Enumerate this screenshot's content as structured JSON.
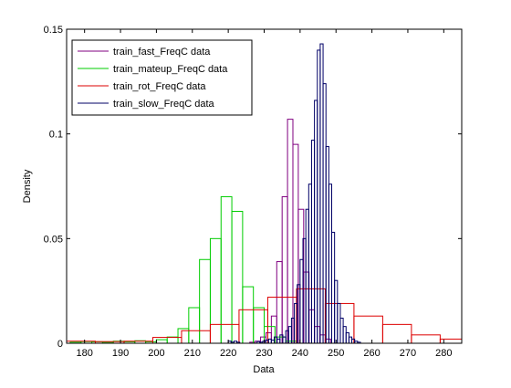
{
  "chart_data": {
    "type": "histogram",
    "xlabel": "Data",
    "ylabel": "Density",
    "xlim": [
      175,
      285
    ],
    "ylim": [
      0,
      0.15
    ],
    "xticks": [
      180,
      190,
      200,
      210,
      220,
      230,
      240,
      250,
      260,
      270,
      280
    ],
    "yticks": [
      0,
      0.05,
      0.1,
      0.15
    ],
    "ytick_labels": [
      "0",
      "0.05",
      "0.1",
      "0.15"
    ],
    "grid": false,
    "legend_position": "top-left",
    "series": [
      {
        "name": "train_fast_FreqC data",
        "color": "#800080",
        "bins": [
          [
            226,
            227.5,
            0.0005
          ],
          [
            227.5,
            229,
            0.001
          ],
          [
            229,
            230.5,
            0.003
          ],
          [
            230.5,
            232,
            0.005
          ],
          [
            232,
            233.5,
            0.013
          ],
          [
            233.5,
            235,
            0.039
          ],
          [
            235,
            236.5,
            0.07
          ],
          [
            236.5,
            238,
            0.107
          ],
          [
            238,
            239.5,
            0.095
          ],
          [
            239.5,
            241,
            0.064
          ],
          [
            241,
            242.5,
            0.034
          ],
          [
            242.5,
            244,
            0.016
          ],
          [
            244,
            245.5,
            0.008
          ],
          [
            245.5,
            247,
            0.004
          ],
          [
            247,
            248.5,
            0.002
          ]
        ]
      },
      {
        "name": "train_mateup_FreqC data",
        "color": "#00cc00",
        "bins": [
          [
            176,
            179,
            0.0005
          ],
          [
            179,
            182,
            0.0008
          ],
          [
            182,
            185,
            0.0007
          ],
          [
            185,
            188,
            0.0005
          ],
          [
            188,
            191,
            0.001
          ],
          [
            191,
            194,
            0.0007
          ],
          [
            194,
            197,
            0.0012
          ],
          [
            197,
            200,
            0.0007
          ],
          [
            200,
            203,
            0.0017
          ],
          [
            203,
            206,
            0.003
          ],
          [
            206,
            209,
            0.007
          ],
          [
            209,
            212,
            0.017
          ],
          [
            212,
            215,
            0.04
          ],
          [
            215,
            218,
            0.05
          ],
          [
            218,
            221,
            0.07
          ],
          [
            221,
            224,
            0.063
          ],
          [
            224,
            227,
            0.027
          ],
          [
            227,
            230,
            0.017
          ],
          [
            230,
            233,
            0.008
          ],
          [
            233,
            236,
            0.003
          ],
          [
            236,
            239,
            0.001
          ]
        ]
      },
      {
        "name": "train_rot_FreqC data",
        "color": "#dd0000",
        "bins": [
          [
            175,
            183,
            0.001
          ],
          [
            183,
            191,
            0.0008
          ],
          [
            191,
            199,
            0.001
          ],
          [
            199,
            207,
            0.0028
          ],
          [
            207,
            215,
            0.006
          ],
          [
            215,
            223,
            0.009
          ],
          [
            223,
            231,
            0.016
          ],
          [
            231,
            239,
            0.022
          ],
          [
            239,
            247,
            0.026
          ],
          [
            247,
            255,
            0.019
          ],
          [
            255,
            263,
            0.013
          ],
          [
            263,
            271,
            0.009
          ],
          [
            271,
            279,
            0.004
          ],
          [
            279,
            285,
            0.002
          ]
        ]
      },
      {
        "name": "train_slow_FreqC data",
        "color": "#000066",
        "bins": [
          [
            220,
            220.8,
            0.001
          ],
          [
            220.8,
            221.6,
            0.0005
          ],
          [
            221.6,
            222.4,
            0.001
          ],
          [
            222.4,
            223.2,
            0.0005
          ],
          [
            228,
            228.8,
            0.0008
          ],
          [
            228.8,
            229.6,
            0.0005
          ],
          [
            229.6,
            230.4,
            0.001
          ],
          [
            230.4,
            231.2,
            0.0015
          ],
          [
            231.2,
            232,
            0.002
          ],
          [
            232,
            232.8,
            0.0015
          ],
          [
            232.8,
            233.6,
            0.003
          ],
          [
            233.6,
            234.4,
            0.002
          ],
          [
            234.4,
            235.2,
            0.004
          ],
          [
            235.2,
            236,
            0.003
          ],
          [
            236,
            236.8,
            0.006
          ],
          [
            236.8,
            237.6,
            0.008
          ],
          [
            237.6,
            238.4,
            0.012
          ],
          [
            238.4,
            239.2,
            0.019
          ],
          [
            239.2,
            240,
            0.028
          ],
          [
            240,
            240.8,
            0.04
          ],
          [
            240.8,
            241.6,
            0.05
          ],
          [
            241.6,
            242.4,
            0.064
          ],
          [
            242.4,
            243.2,
            0.076
          ],
          [
            243.2,
            244,
            0.097
          ],
          [
            244,
            244.8,
            0.116
          ],
          [
            244.8,
            245.6,
            0.14
          ],
          [
            245.6,
            246.4,
            0.143
          ],
          [
            246.4,
            247.2,
            0.124
          ],
          [
            247.2,
            248,
            0.094
          ],
          [
            248,
            248.8,
            0.076
          ],
          [
            248.8,
            249.6,
            0.053
          ],
          [
            249.6,
            250.4,
            0.03
          ],
          [
            250.4,
            251.2,
            0.019
          ],
          [
            251.2,
            252,
            0.012
          ],
          [
            252,
            252.8,
            0.008
          ],
          [
            252.8,
            253.6,
            0.005
          ],
          [
            253.6,
            254.4,
            0.003
          ],
          [
            254.4,
            255.2,
            0.002
          ],
          [
            255.2,
            256,
            0.001
          ],
          [
            256,
            256.8,
            0.0005
          ]
        ]
      }
    ]
  }
}
